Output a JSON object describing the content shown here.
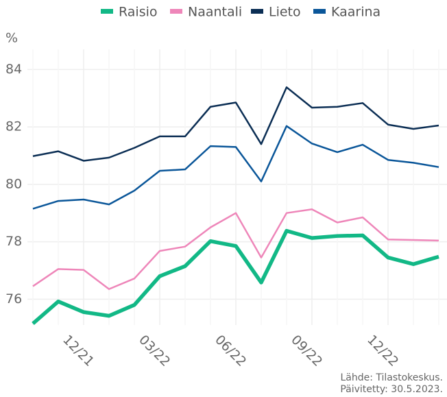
{
  "chart_data": {
    "type": "line",
    "y_label": "%",
    "source": "Lähde: Tilastokeskus.",
    "updated": "Päivitetty: 30.5.2023.",
    "categories": [
      null,
      null,
      "12/21",
      null,
      null,
      "03/22",
      null,
      null,
      "06/22",
      null,
      null,
      "09/22",
      null,
      null,
      "12/22",
      null,
      null
    ],
    "series": [
      {
        "name": "Raisio",
        "color": "#12b886",
        "values": [
          75.15,
          75.92,
          75.55,
          75.42,
          75.8,
          76.8,
          77.15,
          78.02,
          77.85,
          76.58,
          78.38,
          78.13,
          78.2,
          78.22,
          77.45,
          77.22,
          77.48
        ]
      },
      {
        "name": "Naantali",
        "color": "#ee86b9",
        "values": [
          76.45,
          77.05,
          77.02,
          76.35,
          76.72,
          77.68,
          77.83,
          78.5,
          79.0,
          77.45,
          79.0,
          79.13,
          78.67,
          78.85,
          78.08,
          78.06,
          78.04
        ]
      },
      {
        "name": "Lieto",
        "color": "#0b2e54",
        "values": [
          80.98,
          81.15,
          80.82,
          80.93,
          81.27,
          81.67,
          81.67,
          82.7,
          82.85,
          81.4,
          83.38,
          82.67,
          82.7,
          82.83,
          82.08,
          81.93,
          82.05
        ]
      },
      {
        "name": "Kaarina",
        "color": "#0a5699",
        "values": [
          79.15,
          79.42,
          79.47,
          79.3,
          79.78,
          80.47,
          80.52,
          81.33,
          81.3,
          80.1,
          82.03,
          81.42,
          81.12,
          81.38,
          80.85,
          80.75,
          80.6
        ]
      }
    ],
    "ylim": [
      75.1,
      84.7
    ],
    "yticks": [
      76,
      78,
      80,
      82,
      84
    ],
    "grid": true,
    "legend": "top"
  }
}
